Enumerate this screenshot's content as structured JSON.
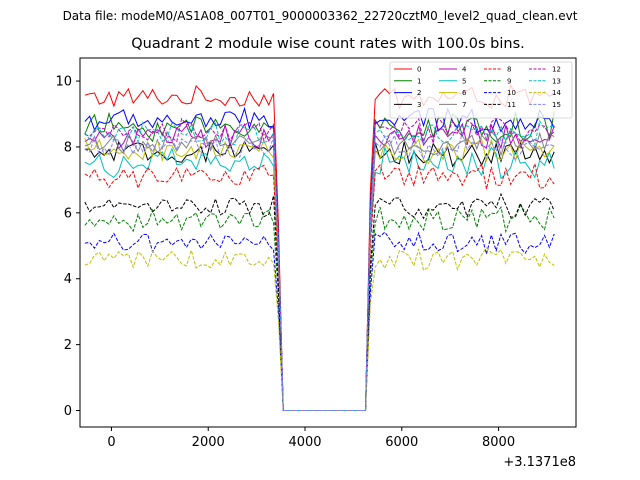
{
  "header": {
    "data_file": "Data file: modeM0/AS1A08_007T01_9000003362_22720cztM0_level2_quad_clean.evt"
  },
  "chart_data": {
    "type": "line",
    "title": "Quadrant 2 module wise count rates with 100.0s bins.",
    "xlabel": "",
    "ylabel": "",
    "x_offset_label": "+3.1371e8",
    "xlim": [
      -650,
      9600
    ],
    "ylim": [
      -0.5,
      10.7
    ],
    "xticks": [
      0,
      2000,
      4000,
      6000,
      8000
    ],
    "yticks": [
      0,
      2,
      4,
      6,
      8,
      10
    ],
    "xtick_labels": [
      "0",
      "2000",
      "4000",
      "6000",
      "8000"
    ],
    "ytick_labels": [
      "0",
      "2",
      "4",
      "6",
      "8",
      "10"
    ],
    "x_start": -550,
    "x_step": 100,
    "gap": {
      "drop_after": 3350,
      "zero_from": 3550,
      "zero_to": 5250,
      "rise_at": 5350
    },
    "x_end": 9150,
    "legend": {
      "placement": "top-right",
      "columns": 4
    },
    "series": [
      {
        "name": "0",
        "color": "#ff0000",
        "dash": "solid",
        "mean": 9.5,
        "amp": 0.28
      },
      {
        "name": "1",
        "color": "#008000",
        "dash": "solid",
        "mean": 8.6,
        "amp": 0.35
      },
      {
        "name": "2",
        "color": "#0000ff",
        "dash": "solid",
        "mean": 8.8,
        "amp": 0.3
      },
      {
        "name": "3",
        "color": "#000000",
        "dash": "solid",
        "mean": 7.8,
        "amp": 0.3
      },
      {
        "name": "4",
        "color": "#bf00bf",
        "dash": "solid",
        "mean": 8.3,
        "amp": 0.32
      },
      {
        "name": "5",
        "color": "#00bfbf",
        "dash": "solid",
        "mean": 7.5,
        "amp": 0.35
      },
      {
        "name": "6",
        "color": "#bfbf00",
        "dash": "solid",
        "mean": 7.9,
        "amp": 0.3
      },
      {
        "name": "7",
        "color": "#808080",
        "dash": "solid",
        "mean": 8.1,
        "amp": 0.28
      },
      {
        "name": "8",
        "color": "#ff0000",
        "dash": "dashed",
        "mean": 7.1,
        "amp": 0.3
      },
      {
        "name": "9",
        "color": "#008000",
        "dash": "dashed",
        "mean": 5.8,
        "amp": 0.3
      },
      {
        "name": "10",
        "color": "#0000ff",
        "dash": "dashed",
        "mean": 5.1,
        "amp": 0.25
      },
      {
        "name": "11",
        "color": "#000000",
        "dash": "dashed",
        "mean": 6.2,
        "amp": 0.28
      },
      {
        "name": "12",
        "color": "#bf00bf",
        "dash": "dashed",
        "mean": 8.5,
        "amp": 0.3
      },
      {
        "name": "13",
        "color": "#00bfbf",
        "dash": "dashed",
        "mean": 8.4,
        "amp": 0.3
      },
      {
        "name": "14",
        "color": "#bfbf00",
        "dash": "dashed",
        "mean": 4.6,
        "amp": 0.25
      },
      {
        "name": "15",
        "color": "#8080ff",
        "dash": "dashed",
        "mean": 8.0,
        "amp": 0.3
      }
    ]
  }
}
